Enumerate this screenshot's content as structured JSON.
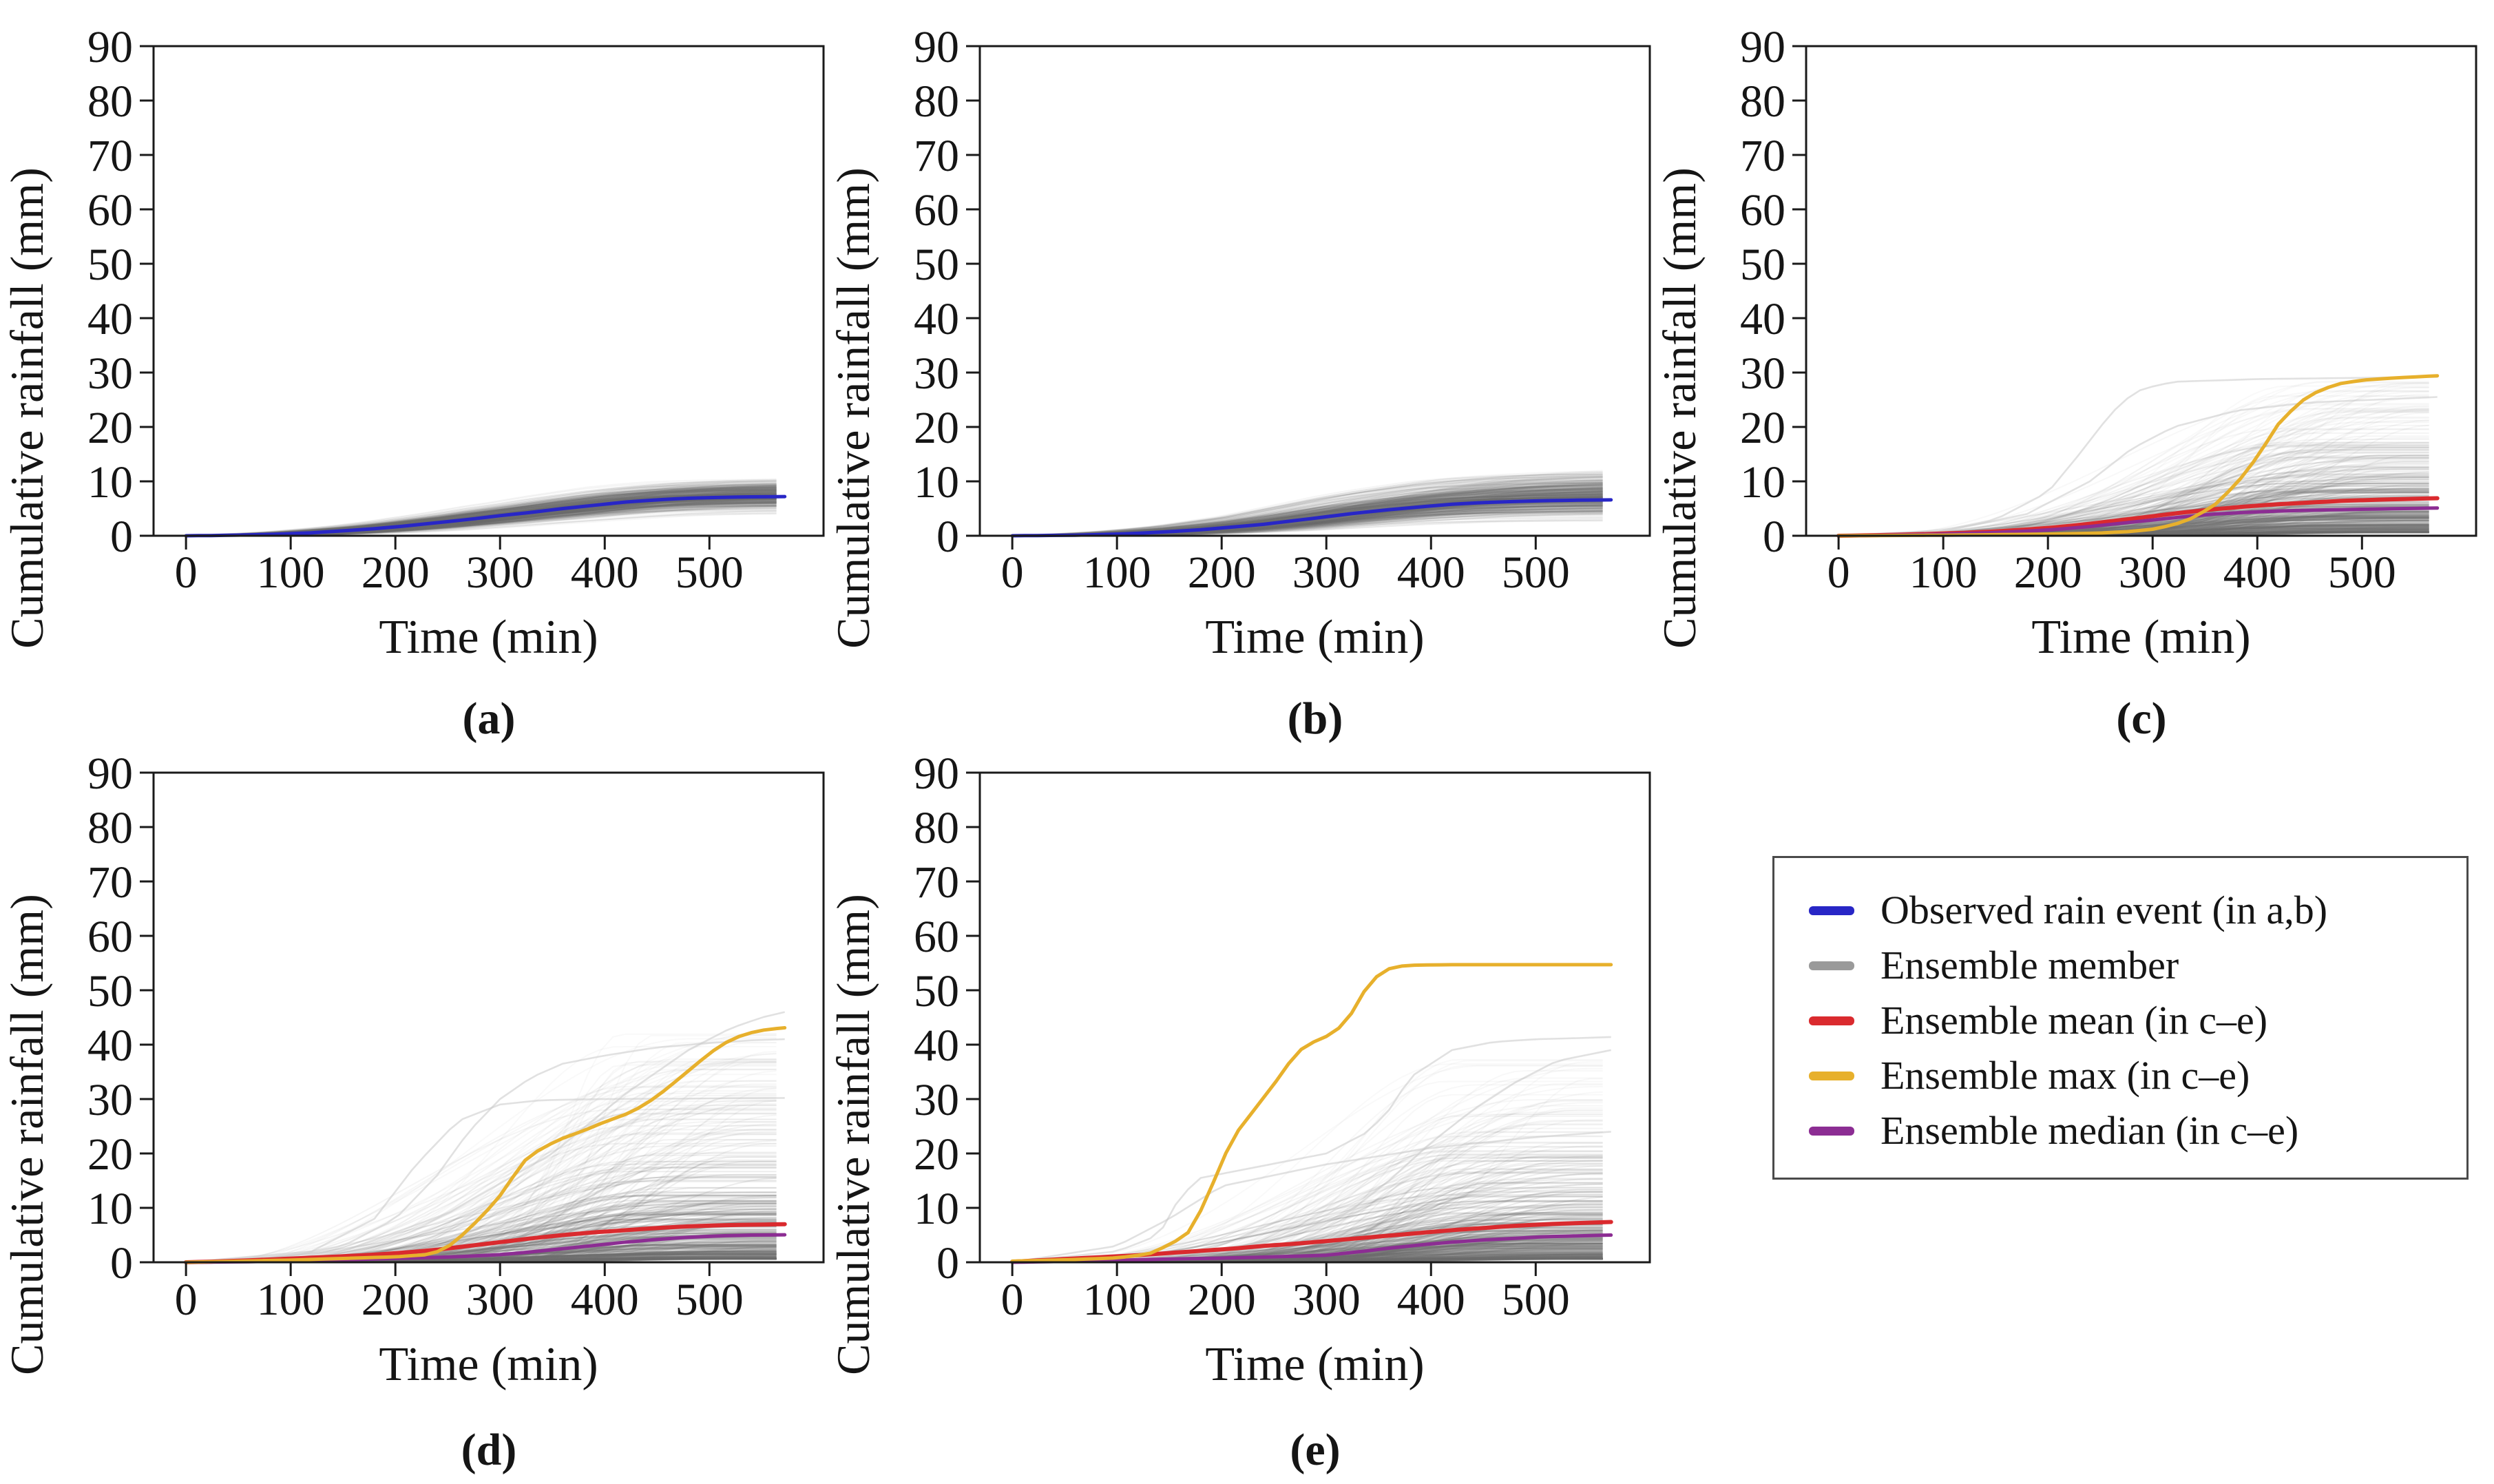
{
  "figure": {
    "background": "#ffffff",
    "text_color": "#151515"
  },
  "legend": {
    "border_color": "#4a4a4a",
    "items": [
      {
        "name": "observed-rain-event",
        "label": "Observed rain event (in a,b)",
        "color": "#2826c6"
      },
      {
        "name": "ensemble-member",
        "label": "Ensemble member",
        "color": "#9a9a9a"
      },
      {
        "name": "ensemble-mean",
        "label": "Ensemble mean (in c–e)",
        "color": "#da2a2e"
      },
      {
        "name": "ensemble-max",
        "label": "Ensemble max (in c–e)",
        "color": "#e7b02c"
      },
      {
        "name": "ensemble-median",
        "label": "Ensemble median (in c–e)",
        "color": "#8c2d93"
      }
    ]
  },
  "chart_data": [
    {
      "id": "a",
      "caption": "(a)",
      "type": "line",
      "xlabel": "Time (min)",
      "ylabel": "Cumulative rainfall (mm)",
      "xlim": [
        -31,
        609
      ],
      "ylim": [
        0,
        90
      ],
      "xticks": [
        0,
        100,
        200,
        300,
        400,
        500
      ],
      "yticks": [
        0,
        10,
        20,
        30,
        40,
        50,
        60,
        70,
        80,
        90
      ],
      "series": [
        {
          "name": "Observed rain event",
          "key": "observed",
          "color": "#2826c6",
          "width": 5,
          "x": [
            0,
            30,
            60,
            90,
            120,
            150,
            180,
            210,
            240,
            270,
            300,
            330,
            360,
            390,
            420,
            450,
            480,
            510,
            540,
            572
          ],
          "y": [
            0,
            0.05,
            0.15,
            0.3,
            0.55,
            0.9,
            1.3,
            1.8,
            2.4,
            3.0,
            3.7,
            4.3,
            5.0,
            5.6,
            6.2,
            6.6,
            6.9,
            7.05,
            7.15,
            7.2
          ]
        }
      ],
      "ensemble": {
        "mode": "follow",
        "count": 320,
        "seed": 7,
        "color": "#6e6e6e",
        "scale": [
          0.55,
          1.5
        ],
        "shift": [
          -45,
          60
        ],
        "x_end": 572,
        "base": 0,
        "outliers": []
      }
    },
    {
      "id": "b",
      "caption": "(b)",
      "type": "line",
      "xlabel": "Time (min)",
      "ylabel": "Cumulative rainfall (mm)",
      "xlim": [
        -31,
        609
      ],
      "ylim": [
        0,
        90
      ],
      "xticks": [
        0,
        100,
        200,
        300,
        400,
        500
      ],
      "yticks": [
        0,
        10,
        20,
        30,
        40,
        50,
        60,
        70,
        80,
        90
      ],
      "series": [
        {
          "name": "Observed rain event",
          "key": "observed",
          "color": "#2826c6",
          "width": 5,
          "x": [
            0,
            30,
            60,
            90,
            120,
            150,
            180,
            210,
            240,
            270,
            300,
            330,
            360,
            390,
            420,
            450,
            480,
            510,
            540,
            572
          ],
          "y": [
            0,
            0.05,
            0.1,
            0.25,
            0.45,
            0.75,
            1.1,
            1.6,
            2.1,
            2.8,
            3.5,
            4.2,
            4.8,
            5.3,
            5.8,
            6.1,
            6.3,
            6.45,
            6.55,
            6.6
          ]
        }
      ],
      "ensemble": {
        "mode": "follow",
        "count": 320,
        "seed": 13,
        "color": "#6e6e6e",
        "scale": [
          0.35,
          1.9
        ],
        "shift": [
          -45,
          70
        ],
        "x_end": 572,
        "base": 0,
        "outliers": []
      }
    },
    {
      "id": "c",
      "caption": "(c)",
      "type": "line",
      "xlabel": "Time (min)",
      "ylabel": "Cumulative rainfall (mm)",
      "xlim": [
        -31,
        609
      ],
      "ylim": [
        0,
        90
      ],
      "xticks": [
        0,
        100,
        200,
        300,
        400,
        500
      ],
      "yticks": [
        0,
        10,
        20,
        30,
        40,
        50,
        60,
        70,
        80,
        90
      ],
      "series": [
        {
          "name": "Ensemble mean",
          "key": "mean",
          "color": "#da2a2e",
          "width": 6,
          "x": [
            0,
            30,
            60,
            90,
            120,
            150,
            180,
            210,
            240,
            270,
            300,
            330,
            360,
            390,
            420,
            450,
            480,
            510,
            540,
            572
          ],
          "y": [
            0,
            0.1,
            0.2,
            0.35,
            0.55,
            0.8,
            1.15,
            1.6,
            2.2,
            2.9,
            3.6,
            4.3,
            4.9,
            5.4,
            5.8,
            6.1,
            6.4,
            6.6,
            6.75,
            6.9
          ]
        },
        {
          "name": "Ensemble median",
          "key": "median",
          "color": "#8c2d93",
          "width": 5,
          "x": [
            0,
            30,
            60,
            90,
            120,
            150,
            180,
            210,
            240,
            270,
            300,
            330,
            360,
            390,
            420,
            450,
            480,
            510,
            540,
            572
          ],
          "y": [
            0,
            0.05,
            0.15,
            0.25,
            0.4,
            0.6,
            0.85,
            1.2,
            1.7,
            2.3,
            2.9,
            3.5,
            4.0,
            4.3,
            4.55,
            4.7,
            4.8,
            4.9,
            5.0,
            5.1
          ]
        },
        {
          "name": "Ensemble max",
          "key": "max",
          "color": "#e7b02c",
          "width": 5,
          "x": [
            0,
            100,
            200,
            250,
            280,
            300,
            320,
            340,
            360,
            380,
            400,
            420,
            440,
            460,
            480,
            500,
            530,
            572
          ],
          "y": [
            0,
            0.1,
            0.3,
            0.5,
            0.8,
            1.2,
            2.0,
            3.4,
            5.8,
            9.5,
            14.5,
            20.5,
            24.5,
            26.8,
            28.0,
            28.6,
            29.0,
            29.4
          ]
        }
      ],
      "ensemble": {
        "mode": "fan",
        "count": 320,
        "seed": 21,
        "color": "#6e6e6e",
        "final": [
          0.6,
          29
        ],
        "skew": 2.4,
        "onset": [
          0,
          270
        ],
        "x_end": 572,
        "outliers": [
          {
            "x": [
              0,
              100,
              150,
              200,
              230,
              250,
              270,
              290,
              320,
              400,
              572
            ],
            "y": [
              0,
              1,
              3,
              8,
              15,
              20,
              24.5,
              27,
              28.3,
              28.8,
              29.2
            ]
          },
          {
            "x": [
              0,
              100,
              180,
              240,
              280,
              320,
              380,
              450,
              572
            ],
            "y": [
              0,
              0.8,
              4,
              10,
              16,
              20,
              23,
              24.5,
              25.5
            ]
          }
        ]
      }
    },
    {
      "id": "d",
      "caption": "(d)",
      "type": "line",
      "xlabel": "Time (min)",
      "ylabel": "Cumulative rainfall (mm)",
      "xlim": [
        -31,
        609
      ],
      "ylim": [
        0,
        90
      ],
      "xticks": [
        0,
        100,
        200,
        300,
        400,
        500
      ],
      "yticks": [
        0,
        10,
        20,
        30,
        40,
        50,
        60,
        70,
        80,
        90
      ],
      "series": [
        {
          "name": "Ensemble mean",
          "key": "mean",
          "color": "#da2a2e",
          "width": 6,
          "x": [
            0,
            30,
            60,
            90,
            120,
            150,
            180,
            210,
            240,
            270,
            300,
            330,
            360,
            390,
            420,
            450,
            480,
            510,
            540,
            572
          ],
          "y": [
            0,
            0.15,
            0.35,
            0.6,
            0.85,
            1.1,
            1.4,
            1.8,
            2.3,
            3.0,
            3.7,
            4.4,
            5.0,
            5.5,
            5.9,
            6.3,
            6.6,
            6.8,
            6.9,
            7.0
          ]
        },
        {
          "name": "Ensemble median",
          "key": "median",
          "color": "#8c2d93",
          "width": 5,
          "x": [
            0,
            30,
            60,
            90,
            120,
            150,
            180,
            210,
            240,
            270,
            300,
            330,
            360,
            390,
            420,
            450,
            480,
            510,
            540,
            572
          ],
          "y": [
            0,
            0.05,
            0.1,
            0.2,
            0.3,
            0.45,
            0.6,
            0.75,
            0.9,
            1.1,
            1.4,
            1.9,
            2.5,
            3.1,
            3.7,
            4.2,
            4.6,
            4.85,
            5.0,
            5.05
          ]
        },
        {
          "name": "Ensemble max",
          "key": "max",
          "color": "#e7b02c",
          "width": 5,
          "x": [
            0,
            100,
            150,
            200,
            230,
            245,
            255,
            265,
            275,
            285,
            295,
            305,
            315,
            325,
            340,
            360,
            380,
            400,
            420,
            435,
            450,
            465,
            480,
            495,
            510,
            525,
            540,
            555,
            572
          ],
          "y": [
            0,
            0.4,
            0.7,
            1.0,
            1.4,
            2.2,
            3.5,
            5.2,
            7.0,
            9.0,
            11.0,
            13.5,
            16.5,
            19.0,
            21.0,
            22.8,
            24.2,
            25.8,
            27.2,
            28.6,
            30.5,
            32.8,
            35.2,
            37.6,
            39.8,
            41.3,
            42.2,
            42.8,
            43.1
          ]
        }
      ],
      "ensemble": {
        "mode": "fan",
        "count": 320,
        "seed": 33,
        "color": "#6e6e6e",
        "final": [
          0.6,
          42
        ],
        "skew": 2.7,
        "onset": [
          0,
          290
        ],
        "x_end": 572,
        "outliers": [
          {
            "x": [
              0,
              100,
              150,
              200,
              240,
              270,
              300,
              330,
              360,
              400,
              450,
              500,
              540,
              572
            ],
            "y": [
              0,
              1,
              3,
              8,
              16,
              24,
              30,
              34,
              36.5,
              38,
              39.5,
              40.3,
              40.8,
              41
            ]
          },
          {
            "x": [
              0,
              120,
              180,
              220,
              260,
              300,
              340,
              400,
              572
            ],
            "y": [
              0,
              2,
              8,
              18,
              26,
              29,
              29.8,
              30,
              30.2
            ]
          },
          {
            "x": [
              0,
              150,
              250,
              350,
              420,
              480,
              520,
              550,
              572
            ],
            "y": [
              0,
              2,
              9,
              20,
              31,
              39,
              43,
              45,
              46
            ]
          }
        ]
      }
    },
    {
      "id": "e",
      "caption": "(e)",
      "type": "line",
      "xlabel": "Time (min)",
      "ylabel": "Cumulative rainfall (mm)",
      "xlim": [
        -31,
        609
      ],
      "ylim": [
        0,
        90
      ],
      "xticks": [
        0,
        100,
        200,
        300,
        400,
        500
      ],
      "yticks": [
        0,
        10,
        20,
        30,
        40,
        50,
        60,
        70,
        80,
        90
      ],
      "series": [
        {
          "name": "Ensemble mean",
          "key": "mean",
          "color": "#da2a2e",
          "width": 6,
          "x": [
            0,
            30,
            60,
            90,
            120,
            150,
            180,
            210,
            240,
            270,
            300,
            330,
            360,
            390,
            420,
            450,
            480,
            510,
            540,
            572
          ],
          "y": [
            0.1,
            0.4,
            0.7,
            1.0,
            1.3,
            1.7,
            2.1,
            2.5,
            3.0,
            3.4,
            3.9,
            4.4,
            4.9,
            5.4,
            5.9,
            6.3,
            6.7,
            7.0,
            7.2,
            7.4
          ]
        },
        {
          "name": "Ensemble median",
          "key": "median",
          "color": "#8c2d93",
          "width": 5,
          "x": [
            0,
            30,
            60,
            90,
            120,
            150,
            180,
            210,
            240,
            270,
            300,
            330,
            360,
            390,
            420,
            450,
            480,
            510,
            540,
            572
          ],
          "y": [
            0,
            0.1,
            0.2,
            0.3,
            0.45,
            0.6,
            0.7,
            0.8,
            0.95,
            1.1,
            1.3,
            1.9,
            2.6,
            3.2,
            3.7,
            4.1,
            4.4,
            4.7,
            4.85,
            5.0
          ]
        },
        {
          "name": "Ensemble max",
          "key": "max",
          "color": "#e7b02c",
          "width": 5,
          "x": [
            0,
            60,
            100,
            130,
            145,
            155,
            165,
            175,
            185,
            195,
            205,
            215,
            225,
            235,
            245,
            255,
            265,
            275,
            285,
            295,
            305,
            315,
            325,
            335,
            345,
            355,
            365,
            380,
            420,
            572
          ],
          "y": [
            0.2,
            0.5,
            0.8,
            1.5,
            2.8,
            3.8,
            4.6,
            7.5,
            11.5,
            16.0,
            20.5,
            24.0,
            26.5,
            29.0,
            31.5,
            34.0,
            36.8,
            39.0,
            40.3,
            41.0,
            42.0,
            43.5,
            46.0,
            49.5,
            52.0,
            53.6,
            54.3,
            54.6,
            54.7,
            54.7
          ]
        }
      ],
      "ensemble": {
        "mode": "fan",
        "count": 320,
        "seed": 45,
        "color": "#6e6e6e",
        "final": [
          0.6,
          38
        ],
        "skew": 2.7,
        "onset": [
          0,
          270
        ],
        "x_end": 572,
        "outliers": [
          {
            "x": [
              0,
              100,
              140,
              160,
              180,
              220,
              260,
              300,
              340,
              360,
              380,
              420,
              460,
              500,
              540,
              572
            ],
            "y": [
              0,
              2,
              5,
              12,
              15.5,
              17,
              18.5,
              20,
              24,
              28,
              34,
              39,
              40.5,
              41,
              41.2,
              41.4
            ]
          },
          {
            "x": [
              0,
              150,
              250,
              320,
              360,
              400,
              440,
              480,
              520,
              572
            ],
            "y": [
              0,
              1,
              4,
              9,
              15,
              22,
              28,
              33,
              37,
              39
            ]
          },
          {
            "x": [
              0,
              100,
              150,
              200,
              300,
              400,
              500,
              572
            ],
            "y": [
              0,
              3,
              8,
              14,
              18,
              21,
              23,
              24
            ]
          }
        ]
      }
    }
  ]
}
